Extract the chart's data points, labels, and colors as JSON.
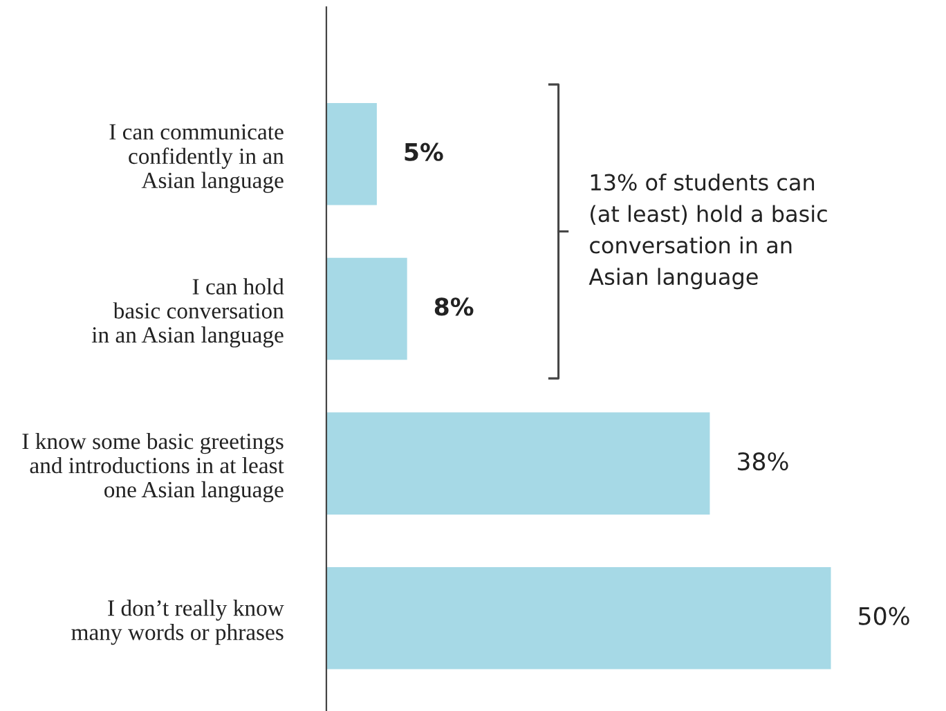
{
  "chart_data": {
    "type": "bar",
    "orientation": "horizontal",
    "categories": [
      "I can communicate\nconfidently in an\nAsian language",
      "I can hold\nbasic conversation\nin an Asian language",
      "I know some basic greetings\nand introductions in at least\none Asian language",
      "I don’t really know\nmany words or phrases"
    ],
    "values": [
      5,
      8,
      38,
      50
    ],
    "value_labels": [
      "5%",
      "8%",
      "38%",
      "50%"
    ],
    "color": "#a6d9e6",
    "annotations": [
      "13% of students can\n(at least) hold a basic\nconversation in an\nAsian language"
    ]
  }
}
